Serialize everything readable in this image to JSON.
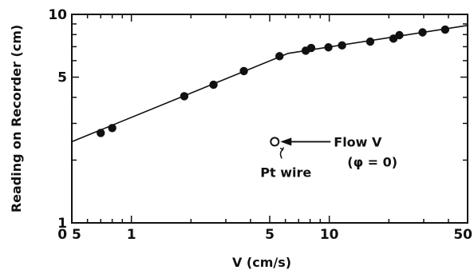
{
  "chart_data": {
    "type": "scatter",
    "title": "",
    "xlabel": "V (cm/s)",
    "ylabel": "Reading on Recorder (cm)",
    "xscale": "log",
    "yscale": "log",
    "xlim": [
      0.5,
      50
    ],
    "ylim": [
      1,
      10
    ],
    "grid": false,
    "colors": {
      "ink": "#111111",
      "background": "#ffffff"
    },
    "x_tick_labels": [
      {
        "value": 0.5,
        "label": "0 5"
      },
      {
        "value": 1,
        "label": "1"
      },
      {
        "value": 5,
        "label": "5"
      },
      {
        "value": 10,
        "label": "10"
      },
      {
        "value": 50,
        "label": "50"
      }
    ],
    "y_tick_labels": [
      {
        "value": 1,
        "label": "1"
      },
      {
        "value": 5,
        "label": "5"
      },
      {
        "value": 10,
        "label": "10"
      }
    ],
    "series": [
      {
        "marker": "filled-circle",
        "x": [
          0.7,
          0.8,
          1.85,
          2.6,
          3.7,
          5.6,
          7.6,
          8.1,
          9.9,
          11.6,
          16.1,
          21.1,
          22.6,
          29.6,
          38.5
        ],
        "y": [
          2.7,
          2.85,
          4.05,
          4.6,
          5.35,
          6.3,
          6.7,
          6.9,
          6.95,
          7.1,
          7.4,
          7.65,
          7.95,
          8.2,
          8.45
        ]
      }
    ],
    "fit_line": {
      "x": [
        0.5,
        6.2,
        50
      ],
      "y": [
        2.45,
        6.5,
        8.85
      ]
    },
    "annotations": {
      "flow_label": "Flow V",
      "angle_label": "(φ = 0)",
      "wire_label": "Pt wire",
      "wire_marker": "open-circle",
      "wire_position": {
        "x": 5.3,
        "y": 2.45
      }
    }
  }
}
